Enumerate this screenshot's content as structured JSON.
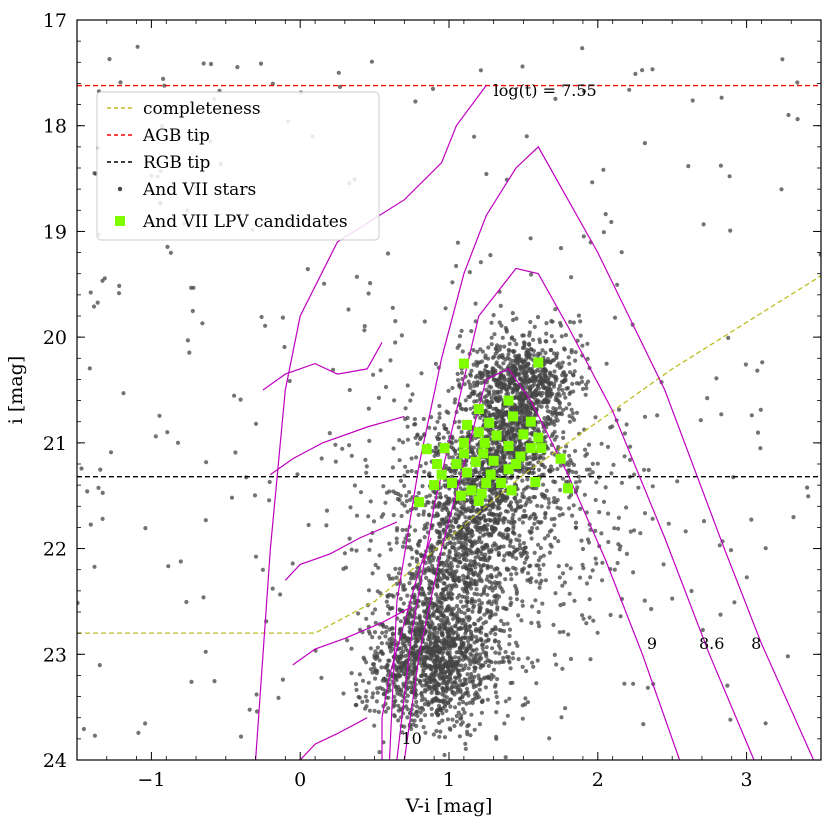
{
  "chart_data": {
    "type": "scatter",
    "title": "",
    "xlabel": "V-i [mag]",
    "ylabel": "i [mag]",
    "xlim": [
      -1.5,
      3.5
    ],
    "ylim": [
      24,
      17
    ],
    "y_inverted": true,
    "x_ticks": [
      -1,
      0,
      1,
      2,
      3
    ],
    "x_tick_labels": [
      "−1",
      "0",
      "1",
      "2",
      "3"
    ],
    "y_ticks": [
      17,
      18,
      19,
      20,
      21,
      22,
      23,
      24
    ],
    "y_tick_labels": [
      "17",
      "18",
      "19",
      "20",
      "21",
      "22",
      "23",
      "24"
    ],
    "grid": false,
    "legend_position": "top-left",
    "legend": [
      {
        "label": "completeness",
        "style": "dashed-line",
        "color": "#bcbd22"
      },
      {
        "label": "AGB tip",
        "style": "dashed-line",
        "color": "#ff0000"
      },
      {
        "label": "RGB tip",
        "style": "dashed-line",
        "color": "#000000"
      },
      {
        "label": "And VII stars",
        "style": "dot",
        "color": "#444444"
      },
      {
        "label": "And VII LPV candidates",
        "style": "square",
        "color": "#7fff00"
      }
    ],
    "reference_lines": {
      "agb_tip_mag": 17.62,
      "rgb_tip_mag": 21.32,
      "completeness": [
        [
          -1.5,
          22.8
        ],
        [
          0.1,
          22.8
        ],
        [
          0.5,
          22.5
        ],
        [
          1.5,
          21.3
        ],
        [
          2.5,
          20.3
        ],
        [
          3.5,
          19.42
        ]
      ]
    },
    "stars_series": {
      "name": "And VII stars",
      "color": "#444444",
      "description": "dense cloud of stars: red giant branch running from about (0.6, 23.8) up to (1.5, 20.2), plus sparse scattered field stars",
      "rgb_base_x": 0.7,
      "rgb_base_y": 23.4,
      "rgb_tip_x": 1.55,
      "rgb_tip_y": 20.3
    },
    "lpv_candidates": {
      "name": "And VII LPV candidates",
      "color": "#7fff00",
      "points": [
        [
          1.1,
          20.25
        ],
        [
          1.6,
          20.24
        ],
        [
          1.2,
          20.68
        ],
        [
          1.4,
          20.6
        ],
        [
          1.43,
          20.75
        ],
        [
          1.12,
          20.83
        ],
        [
          1.27,
          20.81
        ],
        [
          1.55,
          20.8
        ],
        [
          1.2,
          20.9
        ],
        [
          1.1,
          21.0
        ],
        [
          1.5,
          20.92
        ],
        [
          1.6,
          20.95
        ],
        [
          1.32,
          20.93
        ],
        [
          1.24,
          21.0
        ],
        [
          1.4,
          21.03
        ],
        [
          1.55,
          21.05
        ],
        [
          0.97,
          21.05
        ],
        [
          0.85,
          21.06
        ],
        [
          1.1,
          21.1
        ],
        [
          1.23,
          21.1
        ],
        [
          1.48,
          21.13
        ],
        [
          1.62,
          21.05
        ],
        [
          0.92,
          21.2
        ],
        [
          1.05,
          21.2
        ],
        [
          1.18,
          21.18
        ],
        [
          1.3,
          21.17
        ],
        [
          1.45,
          21.2
        ],
        [
          1.75,
          21.15
        ],
        [
          0.95,
          21.3
        ],
        [
          1.12,
          21.28
        ],
        [
          1.4,
          21.25
        ],
        [
          1.28,
          21.3
        ],
        [
          1.02,
          21.38
        ],
        [
          1.25,
          21.38
        ],
        [
          1.35,
          21.38
        ],
        [
          1.58,
          21.37
        ],
        [
          0.9,
          21.4
        ],
        [
          1.15,
          21.45
        ],
        [
          1.22,
          21.48
        ],
        [
          1.08,
          21.5
        ],
        [
          1.42,
          21.45
        ],
        [
          1.8,
          21.43
        ],
        [
          0.8,
          21.56
        ],
        [
          1.2,
          21.55
        ]
      ]
    },
    "isochrones": {
      "color": "#c000c0",
      "curves": [
        {
          "label": "log(t) = 7.55",
          "points": [
            [
              -0.3,
              24.0
            ],
            [
              -0.2,
              22.0
            ],
            [
              -0.1,
              20.5
            ],
            [
              0.0,
              19.8
            ],
            [
              0.25,
              19.1
            ],
            [
              0.7,
              18.7
            ],
            [
              0.95,
              18.35
            ],
            [
              1.05,
              18.0
            ],
            [
              1.25,
              17.62
            ]
          ]
        },
        {
          "label": "8",
          "points": [
            [
              0.6,
              24.0
            ],
            [
              0.65,
              22.5
            ],
            [
              0.8,
              21.2
            ],
            [
              0.95,
              20.2
            ],
            [
              1.1,
              19.4
            ],
            [
              1.25,
              18.85
            ],
            [
              1.45,
              18.4
            ],
            [
              1.6,
              18.2
            ],
            [
              2.0,
              19.2
            ],
            [
              2.45,
              20.5
            ],
            [
              2.85,
              22.0
            ],
            [
              3.1,
              22.9
            ],
            [
              3.45,
              24.0
            ]
          ]
        },
        {
          "label": "8.6",
          "points": [
            [
              0.65,
              24.0
            ],
            [
              0.75,
              22.8
            ],
            [
              0.9,
              21.6
            ],
            [
              1.05,
              20.7
            ],
            [
              1.2,
              19.8
            ],
            [
              1.45,
              19.35
            ],
            [
              1.6,
              19.4
            ],
            [
              1.8,
              19.9
            ],
            [
              2.1,
              20.7
            ],
            [
              2.45,
              21.9
            ],
            [
              2.75,
              23.0
            ],
            [
              3.05,
              24.0
            ]
          ]
        },
        {
          "label": "9",
          "points": [
            [
              0.7,
              24.0
            ],
            [
              0.8,
              23.0
            ],
            [
              0.95,
              22.0
            ],
            [
              1.1,
              21.2
            ],
            [
              1.25,
              20.4
            ],
            [
              1.4,
              20.3
            ],
            [
              1.55,
              20.6
            ],
            [
              1.8,
              21.3
            ],
            [
              2.05,
              22.1
            ],
            [
              2.3,
              23.0
            ],
            [
              2.55,
              24.0
            ]
          ]
        },
        {
          "label": "10",
          "points": [
            [
              0.55,
              24.0
            ],
            [
              0.55,
              23.6
            ],
            [
              0.6,
              23.2
            ],
            [
              0.7,
              22.7
            ],
            [
              0.8,
              22.2
            ],
            [
              0.88,
              21.9
            ]
          ]
        }
      ],
      "extra_loops": [
        [
          [
            -0.25,
            20.5
          ],
          [
            -0.1,
            20.35
          ],
          [
            0.1,
            20.25
          ],
          [
            0.25,
            20.35
          ],
          [
            0.45,
            20.3
          ],
          [
            0.55,
            20.05
          ]
        ],
        [
          [
            -0.2,
            21.3
          ],
          [
            -0.05,
            21.15
          ],
          [
            0.15,
            21.0
          ],
          [
            0.45,
            20.85
          ],
          [
            0.7,
            20.75
          ]
        ],
        [
          [
            -0.1,
            22.3
          ],
          [
            0.0,
            22.15
          ],
          [
            0.2,
            22.05
          ],
          [
            0.4,
            21.9
          ],
          [
            0.65,
            21.75
          ]
        ],
        [
          [
            -0.05,
            23.1
          ],
          [
            0.1,
            22.95
          ],
          [
            0.3,
            22.85
          ],
          [
            0.55,
            22.7
          ],
          [
            0.75,
            22.55
          ]
        ],
        [
          [
            0.0,
            24.0
          ],
          [
            0.1,
            23.85
          ],
          [
            0.25,
            23.75
          ],
          [
            0.45,
            23.6
          ]
        ]
      ],
      "annotations": [
        {
          "text": "log(t) = 7.55",
          "x": 1.3,
          "y": 17.72
        },
        {
          "text": "9",
          "x": 2.33,
          "y": 22.95
        },
        {
          "text": "8.6",
          "x": 2.68,
          "y": 22.95
        },
        {
          "text": "8",
          "x": 3.03,
          "y": 22.95
        },
        {
          "text": "10",
          "x": 0.68,
          "y": 23.85
        }
      ]
    }
  }
}
